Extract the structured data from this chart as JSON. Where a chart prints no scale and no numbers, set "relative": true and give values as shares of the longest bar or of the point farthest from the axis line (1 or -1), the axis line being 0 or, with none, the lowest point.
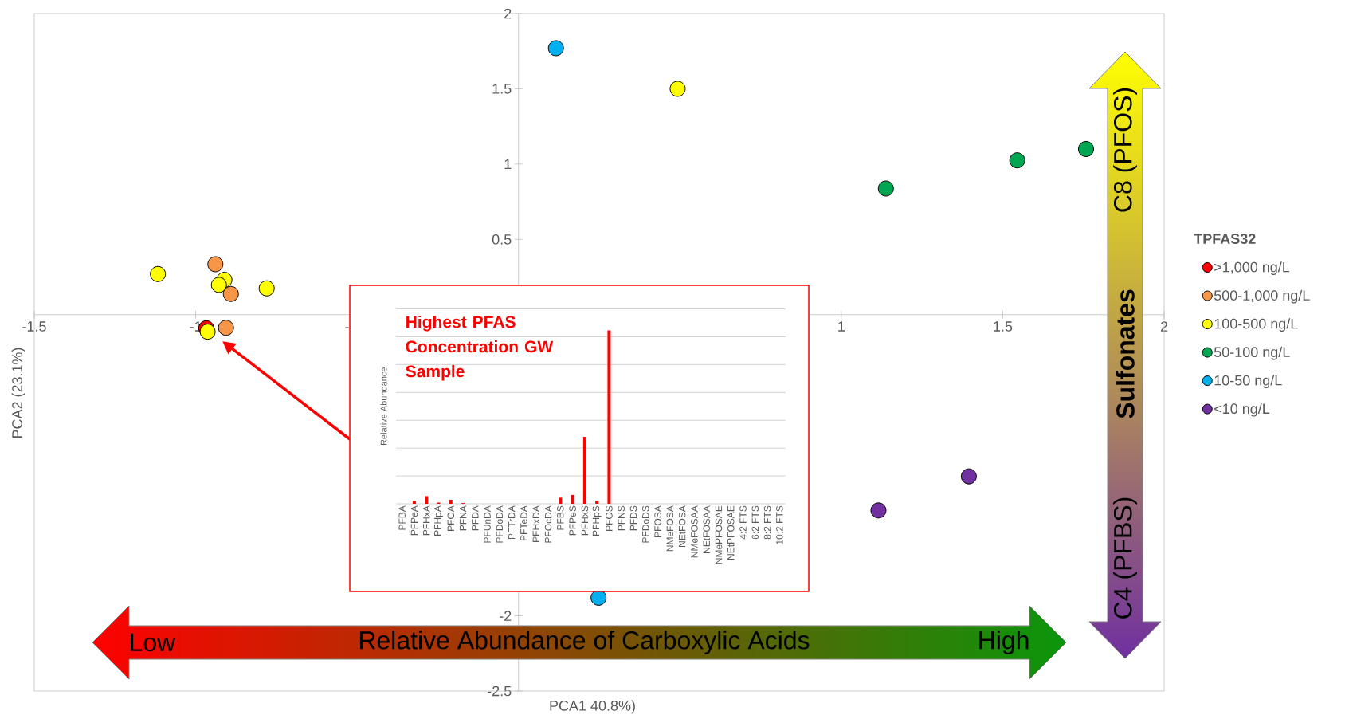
{
  "chart_data": [
    {
      "type": "scatter",
      "xlabel": "PCA1 40.8%)",
      "ylabel": "PCA2 (23.1%)",
      "legend_title": "TPFAS32",
      "legend": "right",
      "xlim": [
        -1.5,
        2
      ],
      "xticks": [
        -1.5,
        -1,
        -0.5,
        1,
        1.5,
        2
      ],
      "ylim": [
        -2.5,
        2
      ],
      "yticks": [
        -2.5,
        -2,
        0.5,
        1,
        1.5,
        2
      ],
      "series": [
        {
          "name": ">1,000 ng/L",
          "color": "#ff0000",
          "x": [
            -0.967
          ],
          "values": [
            -0.09
          ]
        },
        {
          "name": "500-1,000 ng/L",
          "color": "#f79646",
          "x": [
            -0.939,
            -0.891,
            -0.906
          ],
          "values": [
            0.335,
            0.138,
            -0.087
          ]
        },
        {
          "name": "100-500 ng/L",
          "color": "#ffff00",
          "x": [
            0.493,
            -1.117,
            -0.911,
            -0.928,
            -0.78,
            -0.963
          ],
          "values": [
            1.5,
            0.27,
            0.232,
            0.198,
            0.175,
            -0.113
          ]
        },
        {
          "name": "50-100 ng/L",
          "color": "#00a651",
          "x": [
            1.138,
            1.545,
            1.758
          ],
          "values": [
            0.838,
            1.025,
            1.1
          ]
        },
        {
          "name": "10-50 ng/L",
          "color": "#00b0f0",
          "x": [
            0.116,
            0.248
          ],
          "values": [
            1.77,
            -1.88
          ]
        },
        {
          "name": "<10 ng/L",
          "color": "#7030a0",
          "x": [
            1.115,
            1.395
          ],
          "values": [
            -1.3,
            -1.074
          ]
        }
      ],
      "annotations": [
        "Low",
        "Relative Abundance of Carboxylic Acids",
        "High",
        "C8 (PFOS)",
        "Sulfonates",
        "C4 (PFBS)"
      ]
    },
    {
      "type": "bar",
      "relative": true,
      "grid": true,
      "title": "Highest PFAS Concentration GW Sample",
      "ylabel": "Relative Abundance",
      "color": "#ff0000",
      "categories": [
        "PFBA",
        "PFPeA",
        "PFHxA",
        "PFHpA",
        "PFOA",
        "PFNA",
        "PFDA",
        "PFUnDA",
        "PFDoDA",
        "PFTrDA",
        "PFTeDA",
        "PFHxDA",
        "PFOcDA",
        "PFBS",
        "PFPeS",
        "PFHxS",
        "PFHpS",
        "PFOS",
        "PFNS",
        "PFDS",
        "PFDoDS",
        "PFOSA",
        "NMeFOSA",
        "NEtFOSA",
        "NMeFOSAA",
        "NEtFOSAA",
        "NMePFOSAE",
        "NEtPFOSAE",
        "4:2 FTS",
        "6:2 FTS",
        "8:2 FTS",
        "10:2 FTS"
      ],
      "values": [
        0,
        0.018,
        0.044,
        0.007,
        0.023,
        0.004,
        0,
        0,
        0,
        0,
        0,
        0,
        0,
        0.035,
        0.051,
        0.386,
        0.018,
        1,
        0,
        0,
        0,
        0,
        0,
        0,
        0,
        0,
        0,
        0,
        0,
        0,
        0,
        0
      ]
    }
  ]
}
